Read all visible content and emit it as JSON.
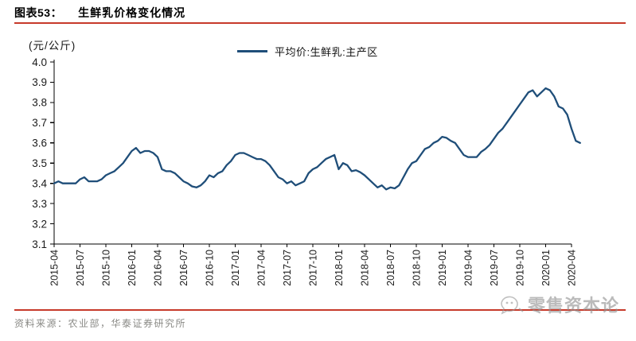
{
  "header": {
    "figure_label": "图表53：",
    "figure_title": "生鲜乳价格变化情况"
  },
  "chart_data": {
    "type": "line",
    "title": "生鲜乳价格变化情况",
    "unit_label": "(元/公斤)",
    "legend": "平均价:生鲜乳:主产区",
    "legend_position": "top-center",
    "grid": false,
    "ylim": [
      3.1,
      4.0
    ],
    "y_tick_step": 0.1,
    "x_tick_labels": [
      "2015-04",
      "2015-07",
      "2015-10",
      "2016-01",
      "2016-04",
      "2016-07",
      "2016-10",
      "2017-01",
      "2017-04",
      "2017-07",
      "2017-10",
      "2018-01",
      "2018-04",
      "2018-07",
      "2018-10",
      "2019-01",
      "2019-04",
      "2019-07",
      "2019-10",
      "2020-01",
      "2020-04"
    ],
    "x_start": "2015-04",
    "x_months_per_tick": 3,
    "points_per_month": 2,
    "series": [
      {
        "name": "平均价:生鲜乳:主产区",
        "color": "#1F4E79",
        "values": [
          3.4,
          3.41,
          3.4,
          3.4,
          3.4,
          3.4,
          3.42,
          3.43,
          3.41,
          3.41,
          3.41,
          3.42,
          3.44,
          3.45,
          3.46,
          3.48,
          3.5,
          3.53,
          3.56,
          3.575,
          3.55,
          3.56,
          3.56,
          3.55,
          3.53,
          3.47,
          3.46,
          3.46,
          3.45,
          3.43,
          3.41,
          3.4,
          3.385,
          3.38,
          3.39,
          3.41,
          3.44,
          3.43,
          3.45,
          3.46,
          3.49,
          3.51,
          3.54,
          3.55,
          3.55,
          3.54,
          3.53,
          3.52,
          3.52,
          3.51,
          3.49,
          3.46,
          3.43,
          3.42,
          3.4,
          3.41,
          3.39,
          3.4,
          3.41,
          3.45,
          3.47,
          3.48,
          3.5,
          3.52,
          3.53,
          3.54,
          3.47,
          3.5,
          3.49,
          3.46,
          3.465,
          3.455,
          3.44,
          3.42,
          3.4,
          3.38,
          3.39,
          3.37,
          3.38,
          3.375,
          3.39,
          3.43,
          3.47,
          3.5,
          3.51,
          3.54,
          3.57,
          3.58,
          3.6,
          3.61,
          3.63,
          3.625,
          3.61,
          3.6,
          3.57,
          3.54,
          3.53,
          3.53,
          3.53,
          3.555,
          3.57,
          3.59,
          3.62,
          3.65,
          3.67,
          3.7,
          3.73,
          3.76,
          3.79,
          3.82,
          3.85,
          3.86,
          3.83,
          3.85,
          3.87,
          3.86,
          3.83,
          3.78,
          3.77,
          3.74,
          3.67,
          3.61,
          3.6
        ]
      }
    ]
  },
  "footer": {
    "source": "资料来源：农业部，华泰证券研究所"
  },
  "watermark": {
    "text": "零售资本论"
  },
  "colors": {
    "accent_red": "#c73a2b",
    "line_navy": "#1F4E79",
    "axis_black": "#000000",
    "tick_label": "#1a1a1a",
    "source_gray": "#8a8a86",
    "watermark_gray": "#919191"
  }
}
